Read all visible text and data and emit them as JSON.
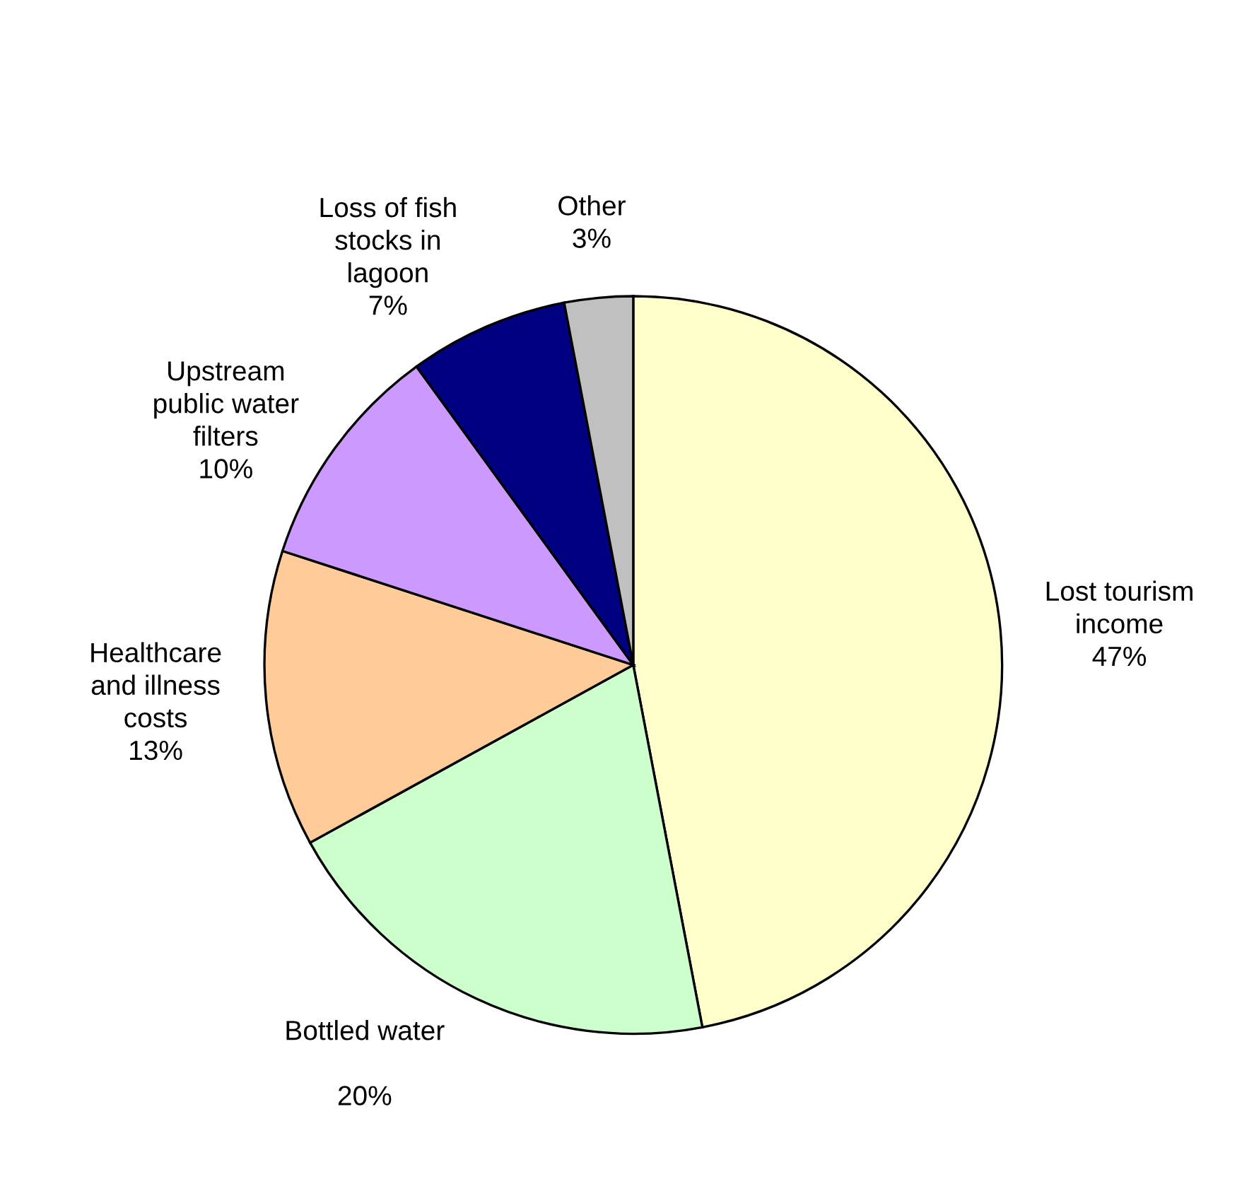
{
  "chart_data": {
    "type": "pie",
    "categories": [
      "Lost tourism\nincome",
      "Bottled water\n",
      "Healthcare\nand illness\ncosts",
      "Upstream\npublic water\nfilters",
      "Loss of fish\nstocks in\nlagoon",
      "Other"
    ],
    "values": [
      47,
      20,
      13,
      10,
      7,
      3
    ],
    "value_labels": [
      "47%",
      "20%",
      "13%",
      "10%",
      "7%",
      "3%"
    ],
    "colors": [
      "#ffffcc",
      "#ccffcc",
      "#ffcc99",
      "#cc99ff",
      "#000080",
      "#c0c0c0"
    ]
  }
}
